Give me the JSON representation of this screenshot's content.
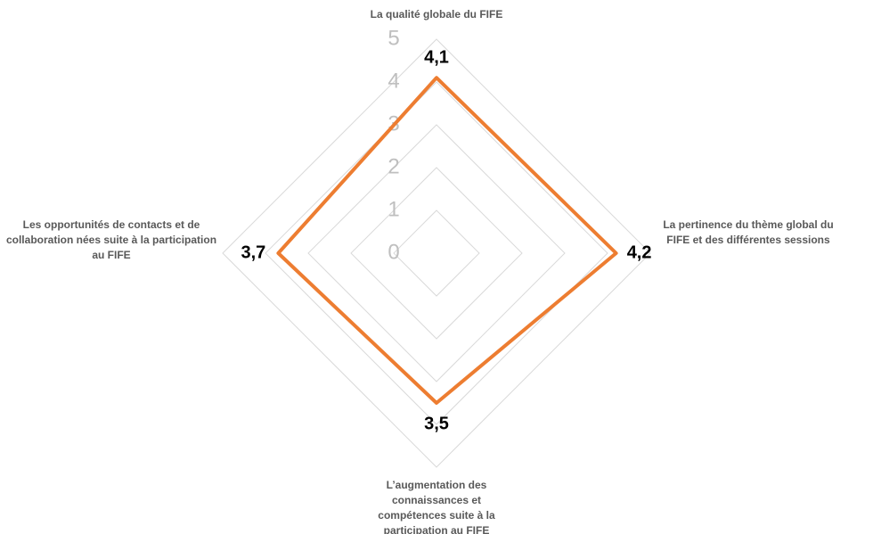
{
  "chart_data": {
    "type": "radar",
    "categories": [
      "La qualité globale du FIFE",
      "La pertinence du thème global du FIFE et des différentes sessions",
      "L’augmentation des connaissances et compétences suite à la participation au FIFE",
      "Les opportunités de contacts et de collaboration nées suite à la participation au FIFE"
    ],
    "values": [
      4.1,
      4.2,
      3.5,
      3.7
    ],
    "value_labels": [
      "4,1",
      "4,2",
      "3,5",
      "3,7"
    ],
    "color": "#ed7d31",
    "ylim": [
      0,
      5
    ],
    "yticks": [
      0,
      1,
      2,
      3,
      4,
      5
    ],
    "grid": true
  }
}
